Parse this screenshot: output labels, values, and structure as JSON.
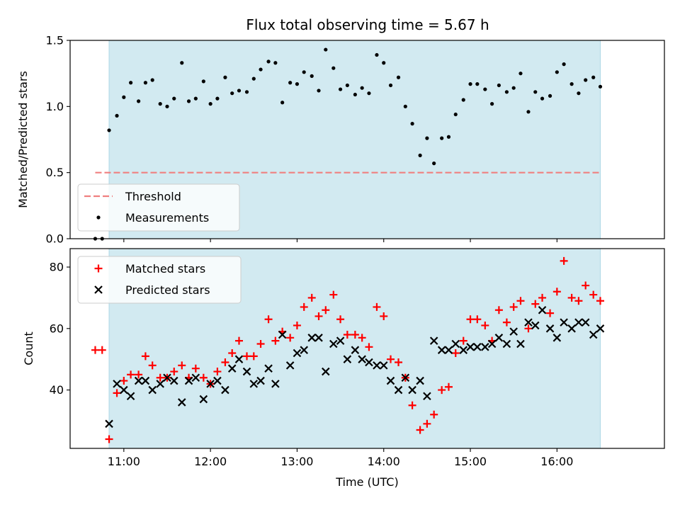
{
  "chart_data": [
    {
      "type": "scatter",
      "title": "Flux total observing time = 5.67 h",
      "ylabel": "Matched/Predicted stars",
      "xlim": [
        10.38,
        17.24
      ],
      "ylim": [
        0.0,
        1.5
      ],
      "yticks": [
        0.0,
        0.5,
        1.0,
        1.5
      ],
      "ytick_labels": [
        "0.0",
        "0.5",
        "1.0",
        "1.5"
      ],
      "observing_window": [
        10.83,
        16.5
      ],
      "threshold": {
        "name": "Threshold",
        "value": 0.5,
        "x_range": [
          10.67,
          16.5
        ]
      },
      "legend_position": "lower-left",
      "series": [
        {
          "name": "Measurements",
          "x": [
            10.67,
            10.75,
            10.83,
            10.92,
            11.0,
            11.08,
            11.17,
            11.25,
            11.33,
            11.42,
            11.5,
            11.58,
            11.67,
            11.75,
            11.83,
            11.92,
            12.0,
            12.08,
            12.17,
            12.25,
            12.33,
            12.42,
            12.5,
            12.58,
            12.67,
            12.75,
            12.83,
            12.92,
            13.0,
            13.08,
            13.17,
            13.25,
            13.33,
            13.42,
            13.5,
            13.58,
            13.67,
            13.75,
            13.83,
            13.92,
            14.0,
            14.08,
            14.17,
            14.25,
            14.33,
            14.42,
            14.5,
            14.58,
            14.67,
            14.75,
            14.83,
            14.92,
            15.0,
            15.08,
            15.17,
            15.25,
            15.33,
            15.42,
            15.5,
            15.58,
            15.67,
            15.75,
            15.83,
            15.92,
            16.0,
            16.08,
            16.17,
            16.25,
            16.33,
            16.42,
            16.5
          ],
          "y": [
            0.0,
            0.0,
            0.82,
            0.93,
            1.07,
            1.18,
            1.04,
            1.18,
            1.2,
            1.02,
            1.0,
            1.06,
            1.33,
            1.04,
            1.06,
            1.19,
            1.02,
            1.06,
            1.22,
            1.1,
            1.12,
            1.11,
            1.21,
            1.28,
            1.34,
            1.33,
            1.03,
            1.18,
            1.17,
            1.26,
            1.23,
            1.12,
            1.43,
            1.29,
            1.13,
            1.16,
            1.09,
            1.14,
            1.1,
            1.39,
            1.33,
            1.16,
            1.22,
            1.0,
            0.87,
            0.63,
            0.76,
            0.57,
            0.76,
            0.77,
            0.94,
            1.05,
            1.17,
            1.17,
            1.13,
            1.02,
            1.16,
            1.11,
            1.14,
            1.25,
            0.96,
            1.11,
            1.06,
            1.08,
            1.26,
            1.32,
            1.17,
            1.1,
            1.2,
            1.22,
            1.15
          ]
        }
      ]
    },
    {
      "type": "scatter",
      "xlabel": "Time (UTC)",
      "ylabel": "Count",
      "xlim": [
        10.38,
        17.24
      ],
      "ylim": [
        21,
        86
      ],
      "xticks": [
        11,
        12,
        13,
        14,
        15,
        16
      ],
      "xtick_labels": [
        "11:00",
        "12:00",
        "13:00",
        "14:00",
        "15:00",
        "16:00"
      ],
      "yticks": [
        40,
        60,
        80
      ],
      "ytick_labels": [
        "40",
        "60",
        "80"
      ],
      "observing_window": [
        10.83,
        16.5
      ],
      "legend_position": "top-left",
      "series": [
        {
          "name": "Matched stars",
          "x": [
            10.67,
            10.75,
            10.83,
            10.92,
            11.0,
            11.08,
            11.17,
            11.25,
            11.33,
            11.42,
            11.5,
            11.58,
            11.67,
            11.75,
            11.83,
            11.92,
            12.0,
            12.08,
            12.17,
            12.25,
            12.33,
            12.42,
            12.5,
            12.58,
            12.67,
            12.75,
            12.83,
            12.92,
            13.0,
            13.08,
            13.17,
            13.25,
            13.33,
            13.42,
            13.5,
            13.58,
            13.67,
            13.75,
            13.83,
            13.92,
            14.0,
            14.08,
            14.17,
            14.25,
            14.33,
            14.42,
            14.5,
            14.58,
            14.67,
            14.75,
            14.83,
            14.92,
            15.0,
            15.08,
            15.17,
            15.25,
            15.33,
            15.42,
            15.5,
            15.58,
            15.67,
            15.75,
            15.83,
            15.92,
            16.0,
            16.08,
            16.17,
            16.25,
            16.33,
            16.42,
            16.5
          ],
          "y": [
            53,
            53,
            24,
            39,
            43,
            45,
            45,
            51,
            48,
            44,
            44,
            46,
            48,
            44,
            47,
            44,
            42,
            46,
            49,
            52,
            56,
            51,
            51,
            55,
            63,
            56,
            59,
            57,
            61,
            67,
            70,
            64,
            66,
            71,
            63,
            58,
            58,
            57,
            54,
            67,
            64,
            50,
            49,
            44,
            35,
            27,
            29,
            32,
            40,
            41,
            52,
            56,
            63,
            63,
            61,
            56,
            66,
            62,
            67,
            69,
            60,
            68,
            70,
            65,
            72,
            82,
            70,
            69,
            74,
            71,
            69
          ]
        },
        {
          "name": "Predicted stars",
          "x": [
            10.83,
            10.92,
            11.0,
            11.08,
            11.17,
            11.25,
            11.33,
            11.42,
            11.5,
            11.58,
            11.67,
            11.75,
            11.83,
            11.92,
            12.0,
            12.08,
            12.17,
            12.25,
            12.33,
            12.42,
            12.5,
            12.58,
            12.67,
            12.75,
            12.83,
            12.92,
            13.0,
            13.08,
            13.17,
            13.25,
            13.33,
            13.42,
            13.5,
            13.58,
            13.67,
            13.75,
            13.83,
            13.92,
            14.0,
            14.08,
            14.17,
            14.25,
            14.33,
            14.42,
            14.5,
            14.58,
            14.67,
            14.75,
            14.83,
            14.92,
            15.0,
            15.08,
            15.17,
            15.25,
            15.33,
            15.42,
            15.5,
            15.58,
            15.67,
            15.75,
            15.83,
            15.92,
            16.0,
            16.08,
            16.17,
            16.25,
            16.33,
            16.42,
            16.5
          ],
          "y": [
            29,
            42,
            40,
            38,
            43,
            43,
            40,
            42,
            44,
            43,
            36,
            43,
            44,
            37,
            42,
            43,
            40,
            47,
            50,
            46,
            42,
            43,
            47,
            42,
            58,
            48,
            52,
            53,
            57,
            57,
            46,
            55,
            56,
            50,
            53,
            50,
            49,
            48,
            48,
            43,
            40,
            44,
            40,
            43,
            38,
            56,
            53,
            53,
            55,
            53,
            54,
            54,
            54,
            55,
            57,
            55,
            59,
            55,
            62,
            61,
            66,
            60,
            57,
            62,
            60,
            62,
            62,
            58,
            60
          ]
        }
      ]
    }
  ],
  "colors": {
    "observing_window": "#add8e6",
    "threshold": "#f08080",
    "measurements": "#000000",
    "matched": "#ff0000",
    "predicted": "#000000"
  }
}
